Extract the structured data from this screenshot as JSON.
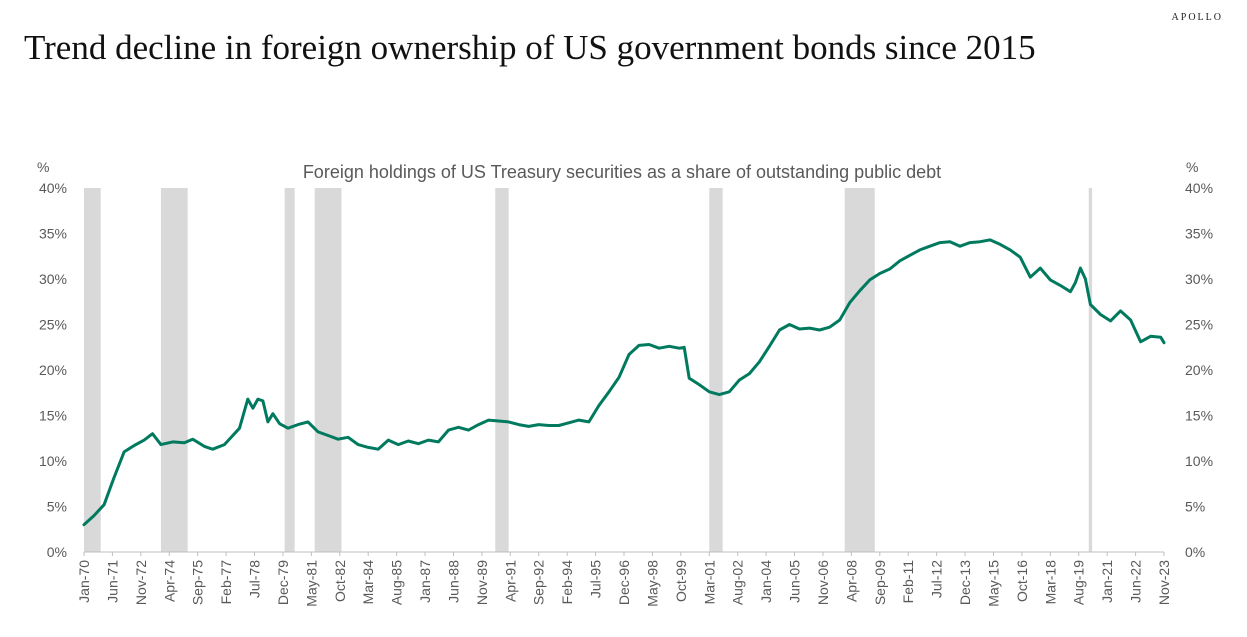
{
  "brand": "APOLLO",
  "title": "Trend decline in foreign ownership of US government bonds since 2015",
  "chart_data": {
    "type": "line",
    "subtitle": "Foreign holdings of US Treasury securities as a share of outstanding public debt",
    "y_unit_left": "%",
    "y_unit_right": "%",
    "ylim": [
      0,
      40
    ],
    "y_ticks": [
      "0%",
      "5%",
      "10%",
      "15%",
      "20%",
      "25%",
      "30%",
      "35%",
      "40%"
    ],
    "x_tick_labels": [
      "Jan-70",
      "Jun-71",
      "Nov-72",
      "Apr-74",
      "Sep-75",
      "Feb-77",
      "Jul-78",
      "Dec-79",
      "May-81",
      "Oct-82",
      "Mar-84",
      "Aug-85",
      "Jan-87",
      "Jun-88",
      "Nov-89",
      "Apr-91",
      "Sep-92",
      "Feb-94",
      "Jul-95",
      "Dec-96",
      "May-98",
      "Oct-99",
      "Mar-01",
      "Aug-02",
      "Jan-04",
      "Jun-05",
      "Nov-06",
      "Apr-08",
      "Sep-09",
      "Feb-11",
      "Jul-12",
      "Dec-13",
      "May-15",
      "Oct-16",
      "Mar-18",
      "Aug-19",
      "Jan-21",
      "Jun-22",
      "Nov-23"
    ],
    "x_range": [
      "1970-01",
      "2023-11"
    ],
    "grid": false,
    "line_color": "#007a5e",
    "recession_color": "#d9d9d9",
    "recessions": [
      [
        "1970-01",
        "1970-11"
      ],
      [
        "1973-11",
        "1975-03"
      ],
      [
        "1980-01",
        "1980-07"
      ],
      [
        "1981-07",
        "1982-11"
      ],
      [
        "1990-07",
        "1991-03"
      ],
      [
        "2001-03",
        "2001-11"
      ],
      [
        "2007-12",
        "2009-06"
      ],
      [
        "2020-02",
        "2020-04"
      ]
    ],
    "series": [
      {
        "x": [
          "1970-01",
          "1970-07",
          "1971-01",
          "1971-07",
          "1972-01",
          "1972-07",
          "1973-01",
          "1973-06",
          "1973-11",
          "1974-06",
          "1975-01",
          "1975-06",
          "1976-01",
          "1976-06",
          "1977-01",
          "1977-06",
          "1977-10",
          "1978-03",
          "1978-06",
          "1978-09",
          "1978-12",
          "1979-03",
          "1979-06",
          "1979-10",
          "1980-03",
          "1980-09",
          "1981-03",
          "1981-09",
          "1982-03",
          "1982-09",
          "1983-03",
          "1983-09",
          "1984-03",
          "1984-09",
          "1985-03",
          "1985-09",
          "1986-03",
          "1986-09",
          "1987-03",
          "1987-09",
          "1988-03",
          "1988-09",
          "1989-03",
          "1989-09",
          "1990-03",
          "1990-09",
          "1991-03",
          "1991-09",
          "1992-03",
          "1992-09",
          "1993-03",
          "1993-09",
          "1994-03",
          "1994-09",
          "1995-03",
          "1995-09",
          "1996-03",
          "1996-09",
          "1997-03",
          "1997-09",
          "1998-03",
          "1998-09",
          "1999-03",
          "1999-09",
          "1999-12",
          "2000-03",
          "2000-09",
          "2001-03",
          "2001-09",
          "2002-03",
          "2002-09",
          "2003-03",
          "2003-09",
          "2004-03",
          "2004-09",
          "2005-03",
          "2005-09",
          "2006-03",
          "2006-09",
          "2007-03",
          "2007-09",
          "2008-03",
          "2008-09",
          "2009-03",
          "2009-09",
          "2010-03",
          "2010-09",
          "2011-03",
          "2011-09",
          "2012-03",
          "2012-09",
          "2013-03",
          "2013-09",
          "2014-03",
          "2014-09",
          "2015-03",
          "2015-09",
          "2016-03",
          "2016-09",
          "2017-03",
          "2017-09",
          "2018-03",
          "2018-09",
          "2019-03",
          "2019-06",
          "2019-09",
          "2019-12",
          "2020-03",
          "2020-09",
          "2021-03",
          "2021-09",
          "2022-03",
          "2022-09",
          "2023-03",
          "2023-09",
          "2023-11"
        ],
        "y": [
          3.0,
          4.0,
          5.2,
          8.2,
          11.0,
          11.7,
          12.3,
          13.0,
          11.8,
          12.1,
          12.0,
          12.4,
          11.6,
          11.3,
          11.8,
          12.8,
          13.6,
          16.8,
          15.8,
          16.8,
          16.6,
          14.3,
          15.2,
          14.1,
          13.6,
          14.0,
          14.3,
          13.2,
          12.8,
          12.4,
          12.6,
          11.8,
          11.5,
          11.3,
          12.3,
          11.8,
          12.2,
          11.9,
          12.3,
          12.1,
          13.4,
          13.7,
          13.4,
          14.0,
          14.5,
          14.4,
          14.3,
          14.0,
          13.8,
          14.0,
          13.9,
          13.9,
          14.2,
          14.5,
          14.3,
          16.1,
          17.6,
          19.2,
          21.7,
          22.7,
          22.8,
          22.4,
          22.6,
          22.4,
          22.5,
          19.1,
          18.4,
          17.6,
          17.3,
          17.6,
          18.9,
          19.6,
          20.9,
          22.6,
          24.4,
          25.0,
          24.5,
          24.6,
          24.4,
          24.7,
          25.5,
          27.4,
          28.7,
          29.9,
          30.6,
          31.1,
          32.0,
          32.6,
          33.2,
          33.6,
          34.0,
          34.1,
          33.6,
          34.0,
          34.1,
          34.3,
          33.8,
          33.2,
          32.4,
          30.2,
          31.2,
          29.9,
          29.3,
          28.6,
          29.6,
          31.2,
          30.0,
          27.2,
          26.1,
          25.4,
          26.5,
          25.5,
          23.1,
          23.7,
          23.6,
          23.0
        ]
      }
    ]
  }
}
